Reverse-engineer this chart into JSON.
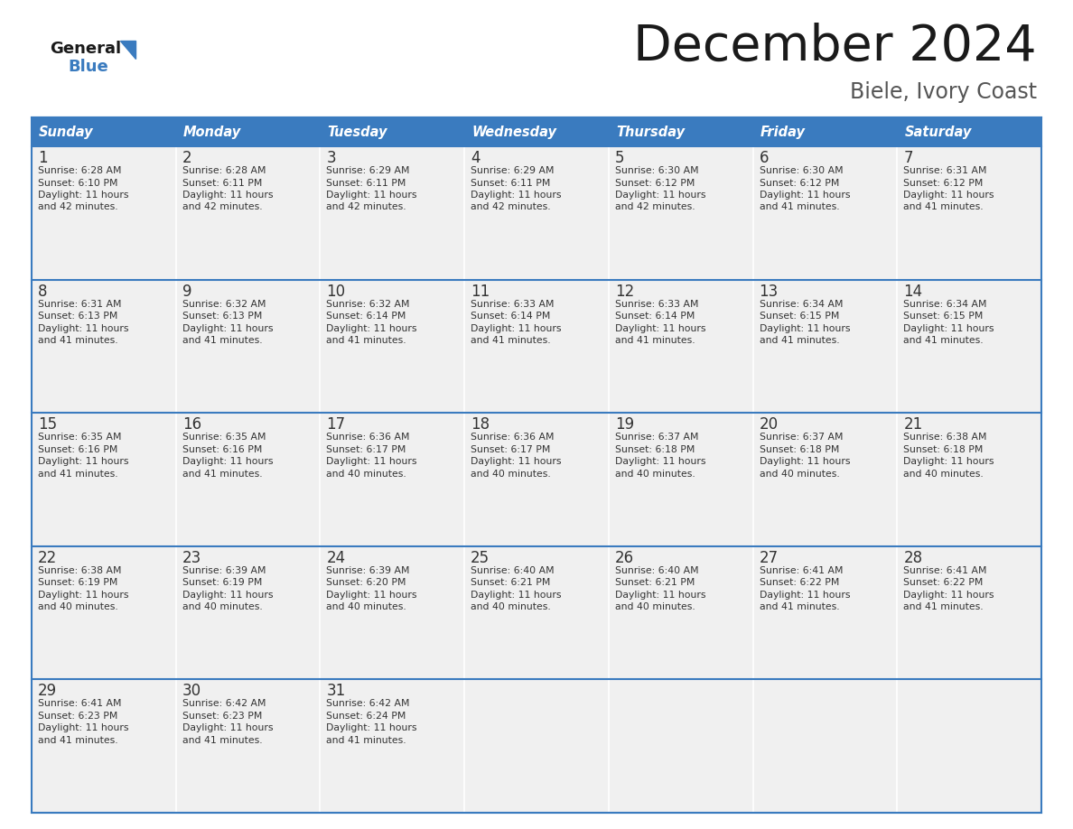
{
  "title": "December 2024",
  "subtitle": "Biele, Ivory Coast",
  "header_color": "#3a7bbf",
  "header_text_color": "#ffffff",
  "day_names": [
    "Sunday",
    "Monday",
    "Tuesday",
    "Wednesday",
    "Thursday",
    "Friday",
    "Saturday"
  ],
  "background_color": "#ffffff",
  "cell_bg_color": "#f0f0f0",
  "row_line_color": "#3a7bbf",
  "text_color": "#333333",
  "days": [
    {
      "day": 1,
      "col": 0,
      "row": 0,
      "sunrise": "6:28 AM",
      "sunset": "6:10 PM",
      "daylight": "11 hours and 42 minutes."
    },
    {
      "day": 2,
      "col": 1,
      "row": 0,
      "sunrise": "6:28 AM",
      "sunset": "6:11 PM",
      "daylight": "11 hours and 42 minutes."
    },
    {
      "day": 3,
      "col": 2,
      "row": 0,
      "sunrise": "6:29 AM",
      "sunset": "6:11 PM",
      "daylight": "11 hours and 42 minutes."
    },
    {
      "day": 4,
      "col": 3,
      "row": 0,
      "sunrise": "6:29 AM",
      "sunset": "6:11 PM",
      "daylight": "11 hours and 42 minutes."
    },
    {
      "day": 5,
      "col": 4,
      "row": 0,
      "sunrise": "6:30 AM",
      "sunset": "6:12 PM",
      "daylight": "11 hours and 42 minutes."
    },
    {
      "day": 6,
      "col": 5,
      "row": 0,
      "sunrise": "6:30 AM",
      "sunset": "6:12 PM",
      "daylight": "11 hours and 41 minutes."
    },
    {
      "day": 7,
      "col": 6,
      "row": 0,
      "sunrise": "6:31 AM",
      "sunset": "6:12 PM",
      "daylight": "11 hours and 41 minutes."
    },
    {
      "day": 8,
      "col": 0,
      "row": 1,
      "sunrise": "6:31 AM",
      "sunset": "6:13 PM",
      "daylight": "11 hours and 41 minutes."
    },
    {
      "day": 9,
      "col": 1,
      "row": 1,
      "sunrise": "6:32 AM",
      "sunset": "6:13 PM",
      "daylight": "11 hours and 41 minutes."
    },
    {
      "day": 10,
      "col": 2,
      "row": 1,
      "sunrise": "6:32 AM",
      "sunset": "6:14 PM",
      "daylight": "11 hours and 41 minutes."
    },
    {
      "day": 11,
      "col": 3,
      "row": 1,
      "sunrise": "6:33 AM",
      "sunset": "6:14 PM",
      "daylight": "11 hours and 41 minutes."
    },
    {
      "day": 12,
      "col": 4,
      "row": 1,
      "sunrise": "6:33 AM",
      "sunset": "6:14 PM",
      "daylight": "11 hours and 41 minutes."
    },
    {
      "day": 13,
      "col": 5,
      "row": 1,
      "sunrise": "6:34 AM",
      "sunset": "6:15 PM",
      "daylight": "11 hours and 41 minutes."
    },
    {
      "day": 14,
      "col": 6,
      "row": 1,
      "sunrise": "6:34 AM",
      "sunset": "6:15 PM",
      "daylight": "11 hours and 41 minutes."
    },
    {
      "day": 15,
      "col": 0,
      "row": 2,
      "sunrise": "6:35 AM",
      "sunset": "6:16 PM",
      "daylight": "11 hours and 41 minutes."
    },
    {
      "day": 16,
      "col": 1,
      "row": 2,
      "sunrise": "6:35 AM",
      "sunset": "6:16 PM",
      "daylight": "11 hours and 41 minutes."
    },
    {
      "day": 17,
      "col": 2,
      "row": 2,
      "sunrise": "6:36 AM",
      "sunset": "6:17 PM",
      "daylight": "11 hours and 40 minutes."
    },
    {
      "day": 18,
      "col": 3,
      "row": 2,
      "sunrise": "6:36 AM",
      "sunset": "6:17 PM",
      "daylight": "11 hours and 40 minutes."
    },
    {
      "day": 19,
      "col": 4,
      "row": 2,
      "sunrise": "6:37 AM",
      "sunset": "6:18 PM",
      "daylight": "11 hours and 40 minutes."
    },
    {
      "day": 20,
      "col": 5,
      "row": 2,
      "sunrise": "6:37 AM",
      "sunset": "6:18 PM",
      "daylight": "11 hours and 40 minutes."
    },
    {
      "day": 21,
      "col": 6,
      "row": 2,
      "sunrise": "6:38 AM",
      "sunset": "6:18 PM",
      "daylight": "11 hours and 40 minutes."
    },
    {
      "day": 22,
      "col": 0,
      "row": 3,
      "sunrise": "6:38 AM",
      "sunset": "6:19 PM",
      "daylight": "11 hours and 40 minutes."
    },
    {
      "day": 23,
      "col": 1,
      "row": 3,
      "sunrise": "6:39 AM",
      "sunset": "6:19 PM",
      "daylight": "11 hours and 40 minutes."
    },
    {
      "day": 24,
      "col": 2,
      "row": 3,
      "sunrise": "6:39 AM",
      "sunset": "6:20 PM",
      "daylight": "11 hours and 40 minutes."
    },
    {
      "day": 25,
      "col": 3,
      "row": 3,
      "sunrise": "6:40 AM",
      "sunset": "6:21 PM",
      "daylight": "11 hours and 40 minutes."
    },
    {
      "day": 26,
      "col": 4,
      "row": 3,
      "sunrise": "6:40 AM",
      "sunset": "6:21 PM",
      "daylight": "11 hours and 40 minutes."
    },
    {
      "day": 27,
      "col": 5,
      "row": 3,
      "sunrise": "6:41 AM",
      "sunset": "6:22 PM",
      "daylight": "11 hours and 41 minutes."
    },
    {
      "day": 28,
      "col": 6,
      "row": 3,
      "sunrise": "6:41 AM",
      "sunset": "6:22 PM",
      "daylight": "11 hours and 41 minutes."
    },
    {
      "day": 29,
      "col": 0,
      "row": 4,
      "sunrise": "6:41 AM",
      "sunset": "6:23 PM",
      "daylight": "11 hours and 41 minutes."
    },
    {
      "day": 30,
      "col": 1,
      "row": 4,
      "sunrise": "6:42 AM",
      "sunset": "6:23 PM",
      "daylight": "11 hours and 41 minutes."
    },
    {
      "day": 31,
      "col": 2,
      "row": 4,
      "sunrise": "6:42 AM",
      "sunset": "6:24 PM",
      "daylight": "11 hours and 41 minutes."
    }
  ]
}
